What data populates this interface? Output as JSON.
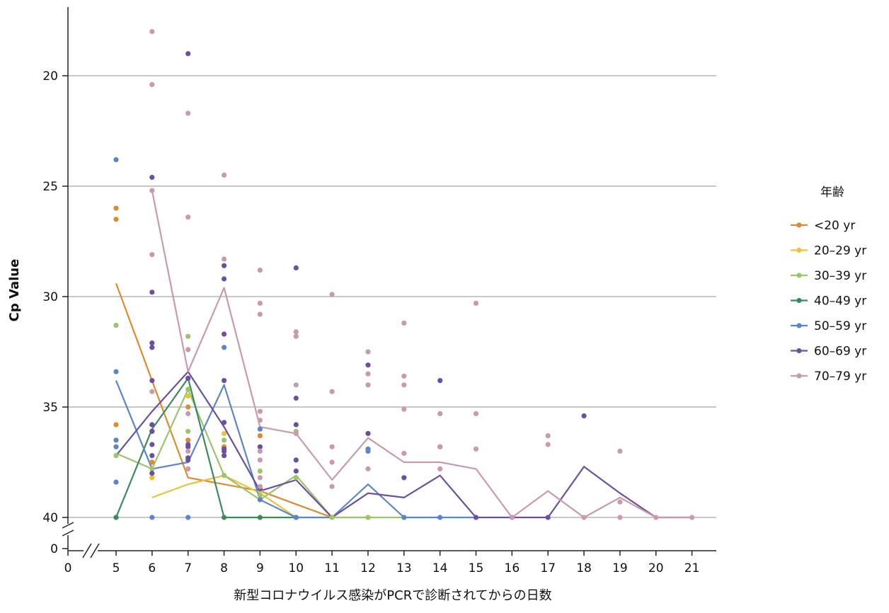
{
  "chart_data": {
    "type": "scatter",
    "title": "",
    "xlabel": "新型コロナウイルス感染がPCRで診断されてからの日数",
    "ylabel": "Cp Value",
    "y_inverted": true,
    "ylim": [
      17,
      40
    ],
    "y_ticks": [
      "20",
      "25",
      "30",
      "35",
      "40"
    ],
    "y_break_label": "0",
    "x_ticks": [
      "0",
      "5",
      "6",
      "7",
      "8",
      "9",
      "10",
      "11",
      "12",
      "13",
      "14",
      "15",
      "16",
      "17",
      "18",
      "19",
      "20",
      "21"
    ],
    "x_range": [
      5,
      21
    ],
    "grid": "horizontal",
    "legend": {
      "title": "年齢",
      "placement": "right"
    },
    "series": [
      {
        "name": "<20 yr",
        "color": "#e08a2e",
        "points": [
          [
            5,
            26.0
          ],
          [
            5,
            26.5
          ],
          [
            5,
            35.8
          ],
          [
            5,
            40.0
          ],
          [
            6,
            37.5
          ],
          [
            6,
            38.2
          ],
          [
            7,
            35.0
          ],
          [
            7,
            36.5
          ],
          [
            8,
            36.8
          ],
          [
            9,
            36.3
          ],
          [
            10,
            40.0
          ],
          [
            11,
            40.0
          ]
        ],
        "line": [
          [
            5,
            29.4
          ],
          [
            6,
            33.8
          ],
          [
            7,
            38.2
          ],
          [
            8,
            38.5
          ],
          [
            9,
            38.8
          ],
          [
            10,
            39.4
          ],
          [
            11,
            40.0
          ]
        ]
      },
      {
        "name": "20–29 yr",
        "color": "#e8c43c",
        "points": [
          [
            6,
            38.2
          ],
          [
            7,
            34.5
          ],
          [
            8,
            36.2
          ],
          [
            9,
            38.8
          ],
          [
            12,
            40.0
          ]
        ],
        "line": [
          [
            6,
            39.1
          ],
          [
            7,
            38.5
          ],
          [
            8,
            38.1
          ],
          [
            9,
            38.9
          ],
          [
            10,
            40.0
          ],
          [
            11,
            40.0
          ],
          [
            12,
            40.0
          ]
        ]
      },
      {
        "name": "30–39 yr",
        "color": "#9bc46b",
        "points": [
          [
            5,
            31.3
          ],
          [
            5,
            37.2
          ],
          [
            6,
            35.8
          ],
          [
            6,
            37.8
          ],
          [
            7,
            31.8
          ],
          [
            7,
            34.2
          ],
          [
            7,
            36.1
          ],
          [
            8,
            36.5
          ],
          [
            8,
            38.1
          ],
          [
            9,
            37.9
          ],
          [
            9,
            39.0
          ],
          [
            10,
            36.1
          ],
          [
            10,
            38.2
          ],
          [
            11,
            40.0
          ],
          [
            12,
            40.0
          ],
          [
            13,
            40.0
          ]
        ],
        "line": [
          [
            5,
            37.1
          ],
          [
            6,
            37.8
          ],
          [
            7,
            34.2
          ],
          [
            8,
            38.1
          ],
          [
            9,
            39.2
          ],
          [
            10,
            38.1
          ],
          [
            11,
            40.0
          ],
          [
            12,
            40.0
          ],
          [
            13,
            40.0
          ]
        ]
      },
      {
        "name": "40–49 yr",
        "color": "#3a8a5c",
        "points": [
          [
            5,
            40.0
          ],
          [
            6,
            35.8
          ],
          [
            6,
            36.1
          ],
          [
            7,
            33.7
          ],
          [
            8,
            40.0
          ],
          [
            9,
            40.0
          ],
          [
            10,
            40.0
          ]
        ],
        "line": [
          [
            5,
            40.0
          ],
          [
            6,
            36.0
          ],
          [
            7,
            33.7
          ],
          [
            8,
            40.0
          ],
          [
            9,
            40.0
          ],
          [
            10,
            40.0
          ]
        ]
      },
      {
        "name": "50–59 yr",
        "color": "#5a86c9",
        "points": [
          [
            5,
            23.8
          ],
          [
            5,
            33.4
          ],
          [
            5,
            36.5
          ],
          [
            5,
            36.8
          ],
          [
            5,
            38.4
          ],
          [
            6,
            40.0
          ],
          [
            7,
            40.0
          ],
          [
            8,
            32.3
          ],
          [
            9,
            36.0
          ],
          [
            9,
            39.2
          ],
          [
            10,
            40.0
          ],
          [
            12,
            36.9
          ],
          [
            12,
            37.0
          ],
          [
            13,
            40.0
          ],
          [
            14,
            40.0
          ]
        ],
        "line": [
          [
            5,
            33.8
          ],
          [
            6,
            37.8
          ],
          [
            7,
            37.5
          ],
          [
            8,
            34.0
          ],
          [
            9,
            39.2
          ],
          [
            10,
            40.0
          ],
          [
            11,
            40.0
          ],
          [
            12,
            38.5
          ],
          [
            13,
            40.0
          ],
          [
            14,
            40.0
          ],
          [
            15,
            40.0
          ]
        ]
      },
      {
        "name": "60–69 yr",
        "color": "#6a50a0",
        "points": [
          [
            6,
            24.6
          ],
          [
            6,
            29.8
          ],
          [
            6,
            32.1
          ],
          [
            6,
            32.3
          ],
          [
            6,
            33.8
          ],
          [
            6,
            35.8
          ],
          [
            6,
            36.1
          ],
          [
            6,
            36.7
          ],
          [
            6,
            37.2
          ],
          [
            6,
            38.0
          ],
          [
            7,
            19.0
          ],
          [
            7,
            33.7
          ],
          [
            7,
            36.7
          ],
          [
            7,
            36.8
          ],
          [
            7,
            37.3
          ],
          [
            7,
            37.4
          ],
          [
            8,
            28.6
          ],
          [
            8,
            29.2
          ],
          [
            8,
            31.7
          ],
          [
            8,
            33.8
          ],
          [
            8,
            35.7
          ],
          [
            8,
            36.9
          ],
          [
            8,
            37.0
          ],
          [
            8,
            37.2
          ],
          [
            9,
            36.8
          ],
          [
            9,
            38.7
          ],
          [
            10,
            28.7
          ],
          [
            10,
            34.6
          ],
          [
            10,
            35.8
          ],
          [
            10,
            37.4
          ],
          [
            10,
            37.9
          ],
          [
            12,
            33.1
          ],
          [
            12,
            36.2
          ],
          [
            13,
            38.2
          ],
          [
            14,
            33.8
          ],
          [
            14,
            36.8
          ],
          [
            15,
            40.0
          ],
          [
            16,
            40.0
          ],
          [
            17,
            40.0
          ],
          [
            18,
            35.4
          ]
        ],
        "line": [
          [
            5,
            37.2
          ],
          [
            6,
            35.2
          ],
          [
            7,
            33.4
          ],
          [
            8,
            35.9
          ],
          [
            9,
            38.8
          ],
          [
            10,
            38.3
          ],
          [
            11,
            40.0
          ],
          [
            12,
            38.9
          ],
          [
            13,
            39.1
          ],
          [
            14,
            38.1
          ],
          [
            15,
            40.0
          ],
          [
            16,
            40.0
          ],
          [
            17,
            40.0
          ],
          [
            18,
            37.7
          ],
          [
            19,
            38.9
          ],
          [
            20,
            40.0
          ],
          [
            21,
            40.0
          ]
        ]
      },
      {
        "name": "70–79 yr",
        "color": "#c99aad",
        "points": [
          [
            6,
            18.0
          ],
          [
            6,
            20.4
          ],
          [
            6,
            25.2
          ],
          [
            6,
            28.1
          ],
          [
            6,
            34.3
          ],
          [
            7,
            21.7
          ],
          [
            7,
            26.4
          ],
          [
            7,
            32.4
          ],
          [
            7,
            35.3
          ],
          [
            7,
            37.0
          ],
          [
            7,
            37.8
          ],
          [
            8,
            24.5
          ],
          [
            8,
            28.3
          ],
          [
            9,
            28.8
          ],
          [
            9,
            30.3
          ],
          [
            9,
            30.8
          ],
          [
            9,
            35.2
          ],
          [
            9,
            35.6
          ],
          [
            9,
            37.0
          ],
          [
            9,
            37.4
          ],
          [
            9,
            38.2
          ],
          [
            9,
            38.6
          ],
          [
            10,
            31.6
          ],
          [
            10,
            31.8
          ],
          [
            10,
            34.0
          ],
          [
            10,
            36.2
          ],
          [
            11,
            29.9
          ],
          [
            11,
            34.3
          ],
          [
            11,
            36.8
          ],
          [
            11,
            37.5
          ],
          [
            11,
            38.6
          ],
          [
            12,
            32.5
          ],
          [
            12,
            33.5
          ],
          [
            12,
            34.0
          ],
          [
            12,
            37.8
          ],
          [
            13,
            31.2
          ],
          [
            13,
            33.6
          ],
          [
            13,
            34.0
          ],
          [
            13,
            35.1
          ],
          [
            13,
            37.1
          ],
          [
            14,
            35.3
          ],
          [
            14,
            36.8
          ],
          [
            14,
            37.8
          ],
          [
            15,
            30.3
          ],
          [
            15,
            35.3
          ],
          [
            15,
            36.9
          ],
          [
            16,
            40.0
          ],
          [
            17,
            36.3
          ],
          [
            17,
            36.7
          ],
          [
            18,
            40.0
          ],
          [
            19,
            37.0
          ],
          [
            19,
            39.3
          ],
          [
            19,
            40.0
          ],
          [
            20,
            40.0
          ],
          [
            21,
            40.0
          ]
        ],
        "line": [
          [
            6,
            25.2
          ],
          [
            7,
            33.4
          ],
          [
            8,
            29.6
          ],
          [
            9,
            35.9
          ],
          [
            10,
            36.2
          ],
          [
            11,
            38.3
          ],
          [
            12,
            36.4
          ],
          [
            13,
            37.5
          ],
          [
            14,
            37.5
          ],
          [
            15,
            37.8
          ],
          [
            16,
            40.0
          ],
          [
            17,
            38.8
          ],
          [
            18,
            40.0
          ],
          [
            19,
            39.1
          ],
          [
            20,
            40.0
          ],
          [
            21,
            40.0
          ]
        ]
      }
    ]
  }
}
